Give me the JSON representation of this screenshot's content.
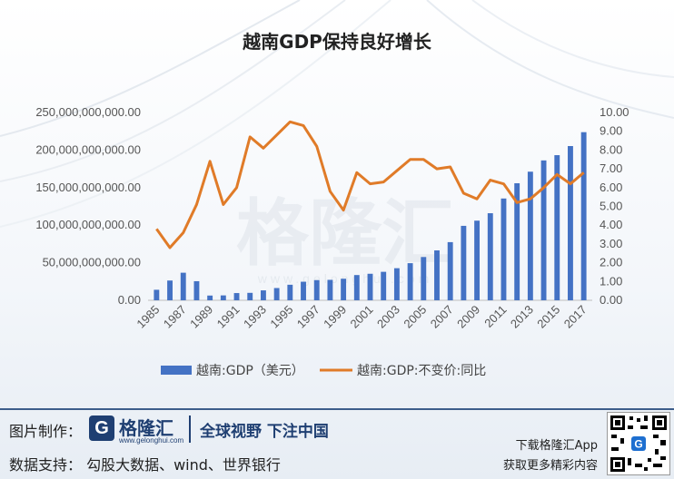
{
  "title": "越南GDP保持良好增长",
  "watermark": {
    "text": "格隆汇",
    "url": "www.gelonghui.com"
  },
  "chart_data": {
    "type": "bar+line",
    "title": "越南GDP保持良好增长",
    "x": [
      1985,
      1986,
      1987,
      1988,
      1989,
      1990,
      1991,
      1992,
      1993,
      1994,
      1995,
      1996,
      1997,
      1998,
      1999,
      2000,
      2001,
      2002,
      2003,
      2004,
      2005,
      2006,
      2007,
      2008,
      2009,
      2010,
      2011,
      2012,
      2013,
      2014,
      2015,
      2016,
      2017
    ],
    "x_tick_labels": [
      "1985",
      "1987",
      "1989",
      "1991",
      "1993",
      "1995",
      "1997",
      "1999",
      "2001",
      "2003",
      "2005",
      "2007",
      "2009",
      "2011",
      "2013",
      "2015",
      "2017"
    ],
    "series": [
      {
        "name": "越南:GDP（美元）",
        "type": "bar",
        "axis": "left",
        "color": "#4472c4",
        "values": [
          14000000000,
          26300000000,
          36700000000,
          25400000000,
          6300000000,
          6500000000,
          9600000000,
          9900000000,
          13200000000,
          16300000000,
          20700000000,
          24700000000,
          26800000000,
          27200000000,
          28700000000,
          33600000000,
          35300000000,
          37900000000,
          42700000000,
          49400000000,
          57600000000,
          66400000000,
          77400000000,
          99100000000,
          106000000000,
          115900000000,
          135500000000,
          155800000000,
          171200000000,
          186200000000,
          193200000000,
          205300000000,
          223800000000
        ]
      },
      {
        "name": "越南:GDP:不变价:同比",
        "type": "line",
        "axis": "right",
        "color": "#e07b28",
        "values": [
          3.8,
          2.8,
          3.6,
          5.1,
          7.4,
          5.1,
          6.0,
          8.7,
          8.1,
          8.8,
          9.5,
          9.3,
          8.2,
          5.8,
          4.8,
          6.8,
          6.2,
          6.3,
          6.9,
          7.5,
          7.5,
          7.0,
          7.1,
          5.7,
          5.4,
          6.4,
          6.2,
          5.2,
          5.4,
          6.0,
          6.7,
          6.2,
          6.8
        ]
      }
    ],
    "y_left": {
      "min": 0,
      "max": 250000000000,
      "ticks": [
        "0.00",
        "50,000,000,000.00",
        "100,000,000,000.00",
        "150,000,000,000.00",
        "200,000,000,000.00",
        "250,000,000,000.00"
      ]
    },
    "y_right": {
      "min": 0,
      "max": 10,
      "ticks": [
        "0.00",
        "1.00",
        "2.00",
        "3.00",
        "4.00",
        "5.00",
        "6.00",
        "7.00",
        "8.00",
        "9.00",
        "10.00"
      ]
    },
    "legend_position": "bottom",
    "grid": false
  },
  "footer": {
    "made_by_label": "图片制作：",
    "brand_mark": "G",
    "brand_name": "格隆汇",
    "brand_url": "www.gelonghui.com",
    "slogan": "全球视野 下注中国",
    "data_source": "数据支持： 勾股大数据、wind、世界银行",
    "download_text": "下载格隆汇App",
    "more_text": "获取更多精彩内容"
  }
}
